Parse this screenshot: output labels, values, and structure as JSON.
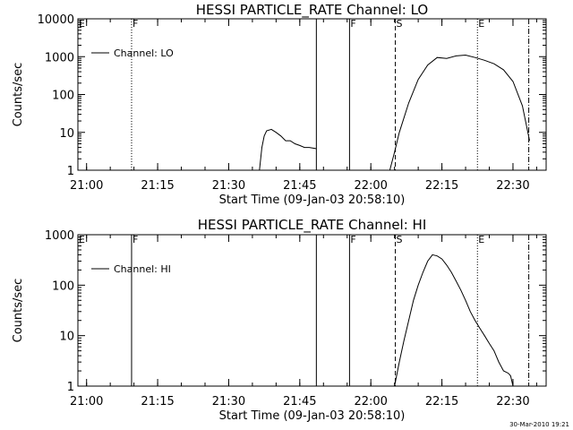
{
  "footer_stamp": "30-Mar-2010 19:21",
  "chart_data": [
    {
      "type": "line",
      "title": "HESSI PARTICLE_RATE Channel: LO",
      "xlabel": "Start Time (09-Jan-03 20:58:10)",
      "ylabel": "Counts/sec",
      "y_scale": "log",
      "ylim": [
        1,
        10000
      ],
      "y_tick_values": [
        1,
        10,
        100,
        1000,
        10000
      ],
      "y_tick_labels": [
        "1",
        "10",
        "100",
        "1000",
        "10000"
      ],
      "xlim": [
        "20:58:10",
        "22:37:00"
      ],
      "x_tick_values": [
        "21:00",
        "21:15",
        "21:30",
        "21:45",
        "22:00",
        "22:15",
        "22:30"
      ],
      "x_tick_labels": [
        "21:00",
        "21:15",
        "21:30",
        "21:45",
        "22:00",
        "22:15",
        "22:30"
      ],
      "legend": {
        "placement": "top-left",
        "entries": [
          "Channel: LO"
        ]
      },
      "grid": false,
      "markers": [
        {
          "time": "20:58:10",
          "label": "E",
          "style": "dotted"
        },
        {
          "time": "21:09:30",
          "label": "F",
          "style": "dotted"
        },
        {
          "time": "21:48:30",
          "label": "",
          "style": "solid"
        },
        {
          "time": "21:55:30",
          "label": "F",
          "style": "solid"
        },
        {
          "time": "22:05:10",
          "label": "S",
          "style": "dashed"
        },
        {
          "time": "22:22:30",
          "label": "E",
          "style": "dotted"
        },
        {
          "time": "22:33:20",
          "label": "",
          "style": "dashdot"
        }
      ],
      "series": [
        {
          "name": "Channel: LO",
          "segments": [
            {
              "x": [
                "21:36:30",
                "21:37:00",
                "21:37:30",
                "21:38:00",
                "21:39:00",
                "21:40:00",
                "21:41:00",
                "21:42:00",
                "21:43:00",
                "21:44:00",
                "21:45:00",
                "21:46:00",
                "21:47:00",
                "21:48:00",
                "21:48:30"
              ],
              "y": [
                1,
                4,
                8,
                11,
                12,
                10,
                8,
                6,
                6,
                5,
                4.5,
                4,
                4,
                3.8,
                3.7
              ]
            },
            {
              "x": [
                "22:04:00",
                "22:05:00",
                "22:06:00",
                "22:08:00",
                "22:10:00",
                "22:12:00",
                "22:14:00",
                "22:16:00",
                "22:18:00",
                "22:20:00",
                "22:22:00",
                "22:24:00",
                "22:26:00",
                "22:28:00",
                "22:30:00",
                "22:32:00",
                "22:33:30"
              ],
              "y": [
                1,
                3,
                10,
                60,
                250,
                600,
                950,
                900,
                1050,
                1100,
                950,
                800,
                650,
                450,
                220,
                50,
                6
              ]
            }
          ]
        }
      ]
    },
    {
      "type": "line",
      "title": "HESSI PARTICLE_RATE Channel: HI",
      "xlabel": "Start Time (09-Jan-03 20:58:10)",
      "ylabel": "Counts/sec",
      "y_scale": "log",
      "ylim": [
        1,
        1000
      ],
      "y_tick_values": [
        1,
        10,
        100,
        1000
      ],
      "y_tick_labels": [
        "1",
        "10",
        "100",
        "1000"
      ],
      "xlim": [
        "20:58:10",
        "22:37:00"
      ],
      "x_tick_values": [
        "21:00",
        "21:15",
        "21:30",
        "21:45",
        "22:00",
        "22:15",
        "22:30"
      ],
      "x_tick_labels": [
        "21:00",
        "21:15",
        "21:30",
        "21:45",
        "22:00",
        "22:15",
        "22:30"
      ],
      "legend": {
        "placement": "top-left",
        "entries": [
          "Channel: HI"
        ]
      },
      "grid": false,
      "markers": [
        {
          "time": "20:58:10",
          "label": "E",
          "style": "dotted"
        },
        {
          "time": "21:09:30",
          "label": "F",
          "style": "solid"
        },
        {
          "time": "21:48:30",
          "label": "",
          "style": "solid"
        },
        {
          "time": "21:55:30",
          "label": "F",
          "style": "solid"
        },
        {
          "time": "22:05:10",
          "label": "S",
          "style": "dashed"
        },
        {
          "time": "22:22:30",
          "label": "E",
          "style": "dotted"
        },
        {
          "time": "22:33:20",
          "label": "",
          "style": "dashdot"
        }
      ],
      "series": [
        {
          "name": "Channel: HI",
          "segments": [
            {
              "x": [
                "22:05:00",
                "22:06:00",
                "22:07:00",
                "22:08:00",
                "22:09:00",
                "22:10:00",
                "22:11:00",
                "22:12:00",
                "22:13:00",
                "22:14:00",
                "22:15:00",
                "22:16:00",
                "22:17:00",
                "22:18:00",
                "22:19:00",
                "22:20:00",
                "22:21:00",
                "22:22:00",
                "22:23:00",
                "22:24:00",
                "22:25:00",
                "22:26:00",
                "22:27:00",
                "22:28:00",
                "22:29:00",
                "22:29:30",
                "22:30:00"
              ],
              "y": [
                1,
                3,
                8,
                20,
                50,
                100,
                180,
                300,
                400,
                380,
                330,
                250,
                180,
                120,
                80,
                50,
                30,
                20,
                14,
                10,
                7,
                5,
                3,
                2,
                1.8,
                1.6,
                1
              ]
            }
          ]
        }
      ]
    }
  ]
}
